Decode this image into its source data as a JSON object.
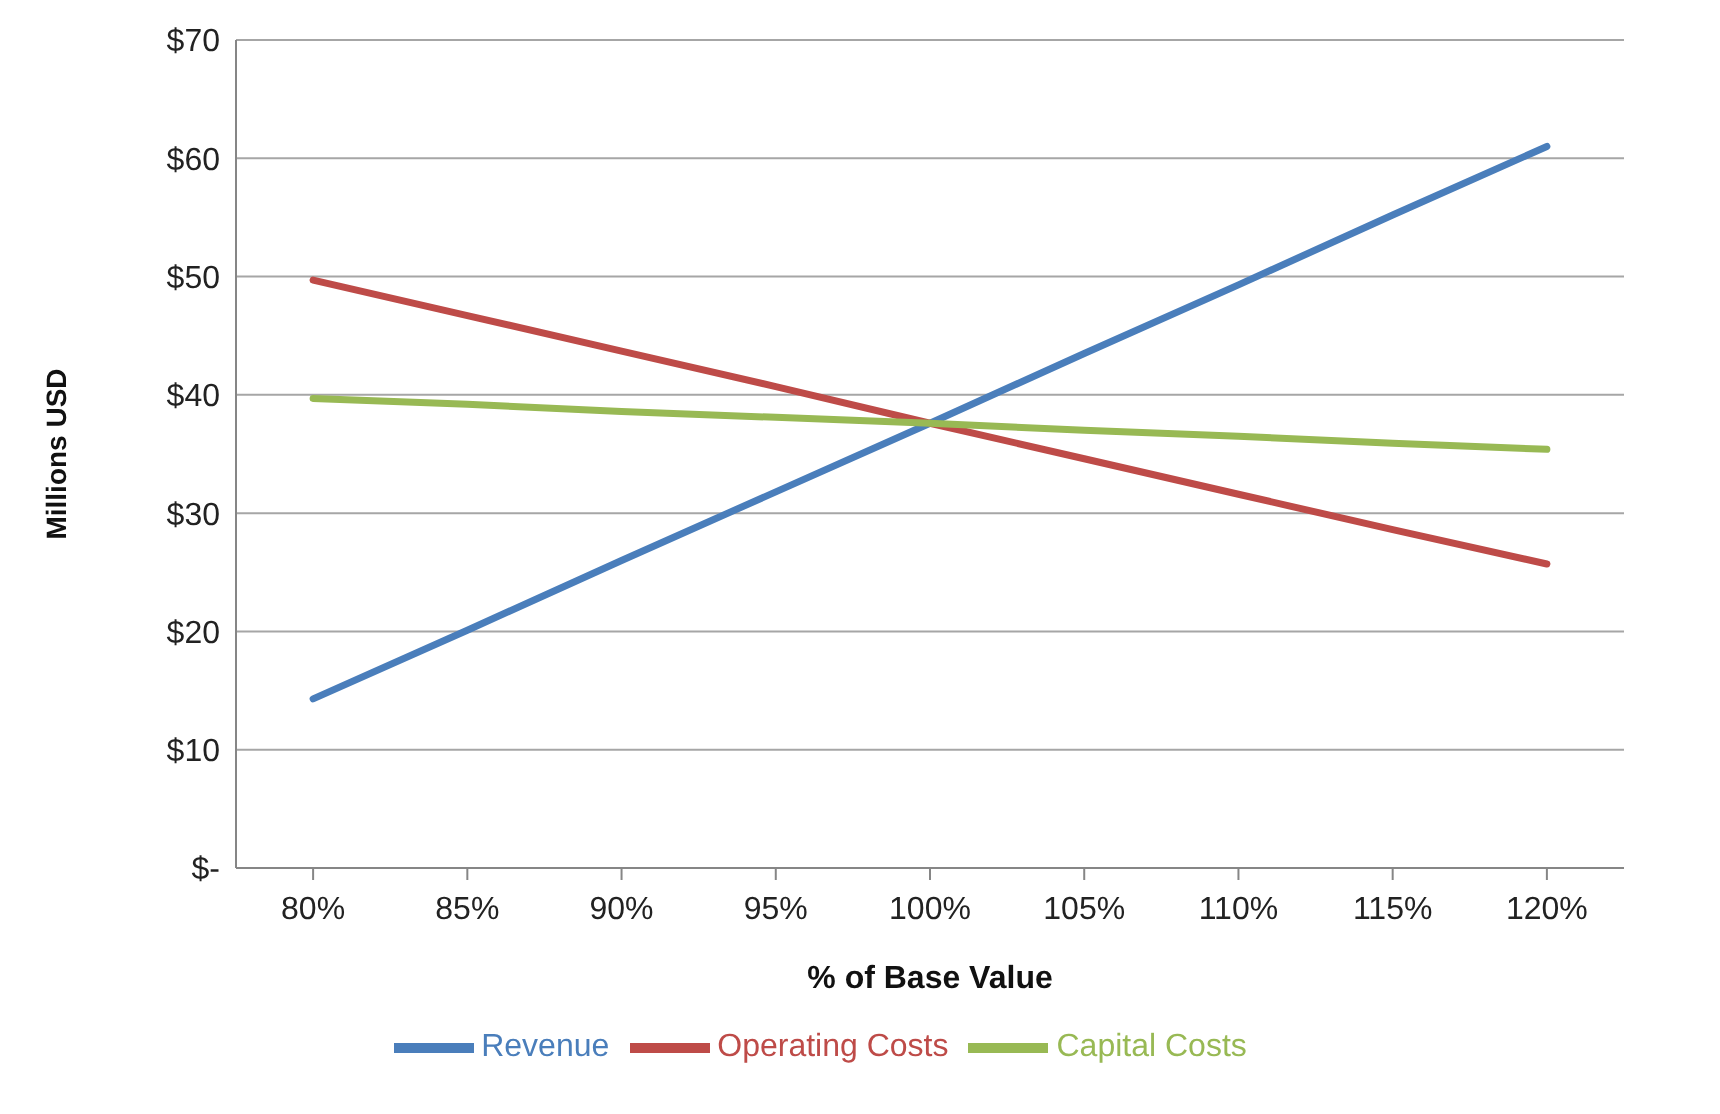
{
  "chart_data": {
    "type": "line",
    "xlabel": "% of Base Value",
    "ylabel": "Millions USD",
    "categories": [
      "80%",
      "85%",
      "90%",
      "95%",
      "100%",
      "105%",
      "110%",
      "115%",
      "120%"
    ],
    "series": [
      {
        "name": "Revenue",
        "color": "#4a7ebb",
        "values": [
          14.3,
          20.1,
          26.0,
          31.8,
          37.6,
          43.5,
          49.3,
          55.2,
          61.0
        ]
      },
      {
        "name": "Operating Costs",
        "color": "#be4b48",
        "values": [
          49.7,
          46.7,
          43.7,
          40.7,
          37.6,
          34.6,
          31.6,
          28.6,
          25.7
        ]
      },
      {
        "name": "Capital Costs",
        "color": "#98b954",
        "values": [
          39.7,
          39.2,
          38.6,
          38.1,
          37.6,
          37.0,
          36.5,
          35.9,
          35.4
        ]
      }
    ],
    "ylim": [
      0,
      70
    ],
    "yticks": [
      {
        "value": 0,
        "label": "$-"
      },
      {
        "value": 10,
        "label": "$10"
      },
      {
        "value": 20,
        "label": "$20"
      },
      {
        "value": 30,
        "label": "$30"
      },
      {
        "value": 40,
        "label": "$40"
      },
      {
        "value": 50,
        "label": "$50"
      },
      {
        "value": 60,
        "label": "$60"
      },
      {
        "value": 70,
        "label": "$70"
      }
    ],
    "grid": "y",
    "legend": "bottom",
    "marker": "none",
    "line_style": "solid"
  }
}
